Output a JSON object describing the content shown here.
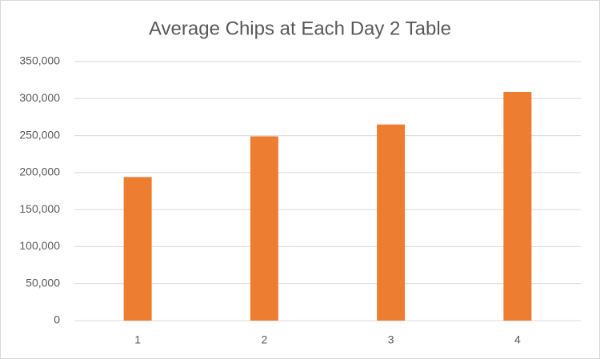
{
  "chart_data": {
    "type": "bar",
    "title": "Average Chips at Each Day 2 Table",
    "categories": [
      "1",
      "2",
      "3",
      "4"
    ],
    "values": [
      194000,
      249000,
      265000,
      309000
    ],
    "color": "#ed7d31",
    "ylim": [
      0,
      350000
    ],
    "yticks": [
      0,
      {
        "value": 50000,
        "label": "50,000"
      },
      {
        "value": 100000,
        "label": "100,000"
      },
      {
        "value": 150000,
        "label": "150,000"
      },
      {
        "value": 200000,
        "label": "200,000"
      },
      {
        "value": 250000,
        "label": "250,000"
      },
      {
        "value": 300000,
        "label": "300,000"
      },
      {
        "value": 350000,
        "label": "350,000"
      }
    ],
    "grid": true
  }
}
